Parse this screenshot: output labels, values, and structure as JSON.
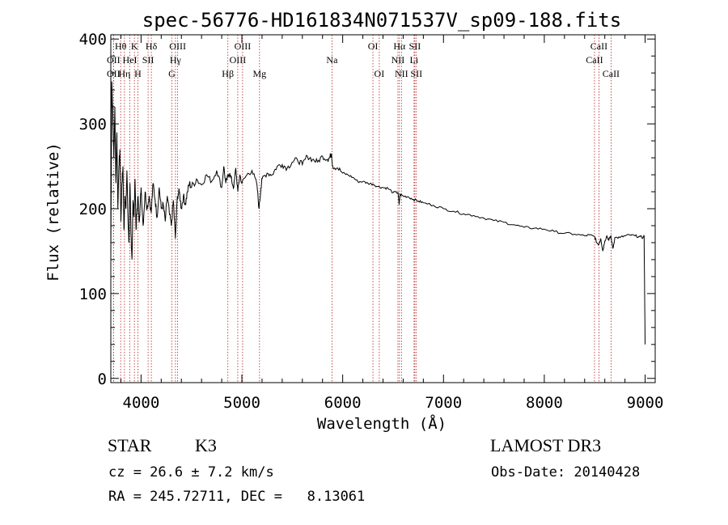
{
  "chart_data": {
    "type": "line",
    "title": "spec-56776-HD161834N071537V_sp09-188.fits",
    "xlabel": "Wavelength (Å)",
    "ylabel": "Flux (relative)",
    "xlim": [
      3700,
      9100
    ],
    "ylim": [
      -5,
      405
    ],
    "xticks": [
      4000,
      5000,
      6000,
      7000,
      8000,
      9000
    ],
    "yticks": [
      0,
      100,
      200,
      300,
      400
    ],
    "grid": false,
    "series": [
      {
        "color": "#000000",
        "x": [
          3700,
          3710,
          3720,
          3730,
          3740,
          3750,
          3760,
          3770,
          3780,
          3790,
          3800,
          3810,
          3820,
          3830,
          3840,
          3850,
          3860,
          3870,
          3880,
          3890,
          3900,
          3910,
          3920,
          3930,
          3940,
          3950,
          3960,
          3970,
          3980,
          3990,
          4000,
          4020,
          4040,
          4060,
          4080,
          4100,
          4120,
          4140,
          4160,
          4180,
          4200,
          4220,
          4240,
          4260,
          4280,
          4300,
          4320,
          4340,
          4360,
          4380,
          4400,
          4420,
          4440,
          4460,
          4480,
          4500,
          4550,
          4600,
          4650,
          4700,
          4750,
          4800,
          4820,
          4840,
          4860,
          4880,
          4900,
          4920,
          4940,
          4960,
          4980,
          5000,
          5050,
          5100,
          5150,
          5170,
          5190,
          5200,
          5250,
          5300,
          5350,
          5400,
          5450,
          5500,
          5550,
          5600,
          5650,
          5700,
          5750,
          5800,
          5850,
          5870,
          5890,
          5900,
          5950,
          6000,
          6050,
          6100,
          6150,
          6200,
          6250,
          6300,
          6350,
          6400,
          6450,
          6500,
          6550,
          6560,
          6570,
          6600,
          6650,
          6700,
          6750,
          6800,
          6900,
          7000,
          7100,
          7200,
          7300,
          7400,
          7500,
          7600,
          7700,
          7800,
          7900,
          8000,
          8100,
          8200,
          8300,
          8400,
          8450,
          8500,
          8520,
          8540,
          8560,
          8580,
          8600,
          8620,
          8640,
          8660,
          8680,
          8700,
          8750,
          8800,
          8850,
          8900,
          8950,
          8980,
          8990,
          9000
        ],
        "y": [
          140,
          350,
          310,
          260,
          320,
          230,
          290,
          200,
          250,
          270,
          185,
          230,
          250,
          175,
          215,
          200,
          245,
          190,
          160,
          230,
          170,
          140,
          210,
          190,
          235,
          175,
          200,
          215,
          185,
          200,
          225,
          180,
          220,
          200,
          215,
          195,
          230,
          210,
          190,
          225,
          200,
          205,
          185,
          215,
          195,
          180,
          210,
          165,
          215,
          220,
          200,
          215,
          205,
          220,
          230,
          225,
          235,
          228,
          240,
          232,
          245,
          225,
          250,
          230,
          238,
          242,
          232,
          225,
          248,
          220,
          240,
          230,
          240,
          245,
          228,
          200,
          225,
          235,
          242,
          240,
          250,
          252,
          248,
          255,
          258,
          252,
          262,
          258,
          255,
          262,
          258,
          260,
          265,
          250,
          248,
          242,
          240,
          237,
          232,
          232,
          230,
          229,
          226,
          225,
          224,
          219,
          219,
          205,
          217,
          215,
          214,
          211,
          209,
          207,
          204,
          200,
          197,
          194,
          192,
          189,
          186,
          184,
          181,
          178,
          177,
          176,
          173,
          171,
          170,
          168,
          169,
          167,
          160,
          158,
          165,
          150,
          162,
          168,
          163,
          168,
          153,
          166,
          166,
          168,
          169,
          168,
          167,
          166,
          168,
          40
        ]
      }
    ],
    "line_annotations": [
      {
        "label": "Hθ",
        "x": 3798,
        "row": 1
      },
      {
        "label": "OII",
        "x": 3727,
        "row": 2
      },
      {
        "label": "OII",
        "x": 3727,
        "row": 3
      },
      {
        "label": "Hη",
        "x": 3835,
        "row": 3
      },
      {
        "label": "HeI",
        "x": 3889,
        "row": 2
      },
      {
        "label": "K",
        "x": 3934,
        "row": 1
      },
      {
        "label": "H",
        "x": 3968,
        "row": 3
      },
      {
        "label": "SII",
        "x": 4070,
        "row": 2
      },
      {
        "label": "Hδ",
        "x": 4102,
        "row": 1
      },
      {
        "label": "OIII",
        "x": 4363,
        "row": 1
      },
      {
        "label": "Hγ",
        "x": 4341,
        "row": 2
      },
      {
        "label": "G",
        "x": 4305,
        "row": 3
      },
      {
        "label": "Hβ",
        "x": 4861,
        "row": 3
      },
      {
        "label": "OIII",
        "x": 5007,
        "row": 1
      },
      {
        "label": "OIII",
        "x": 4959,
        "row": 2
      },
      {
        "label": "Mg",
        "x": 5175,
        "row": 3
      },
      {
        "label": "Na",
        "x": 5894,
        "row": 2
      },
      {
        "label": "OI",
        "x": 6300,
        "row": 1
      },
      {
        "label": "OI",
        "x": 6363,
        "row": 3
      },
      {
        "label": "Hα",
        "x": 6563,
        "row": 1
      },
      {
        "label": "NII",
        "x": 6548,
        "row": 2
      },
      {
        "label": "NII",
        "x": 6583,
        "row": 3
      },
      {
        "label": "SII",
        "x": 6716,
        "row": 1
      },
      {
        "label": "Li",
        "x": 6708,
        "row": 2
      },
      {
        "label": "SII",
        "x": 6731,
        "row": 3
      },
      {
        "label": "CaII",
        "x": 8542,
        "row": 1
      },
      {
        "label": "CaII",
        "x": 8498,
        "row": 2
      },
      {
        "label": "CaII",
        "x": 8662,
        "row": 3
      }
    ],
    "annotation_line_color": "#b22222"
  },
  "info": {
    "object_class": "STAR",
    "subclass": "K3",
    "survey": "LAMOST DR3",
    "redshift": "cz = 26.6 ± 7.2 km/s",
    "obs_date": "Obs-Date: 20140428",
    "coordinates": "RA = 245.72711, DEC =   8.13061"
  }
}
